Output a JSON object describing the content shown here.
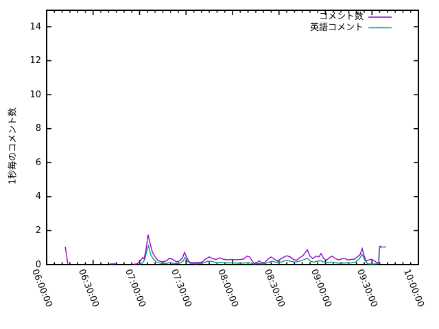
{
  "chart_data": {
    "type": "line",
    "title": "",
    "xlabel": "",
    "ylabel": "1秒毎のコメント数",
    "x_axis": {
      "tick_labels": [
        "06:00:00",
        "06:30:00",
        "07:00:00",
        "07:30:00",
        "08:00:00",
        "08:30:00",
        "09:00:00",
        "09:30:00",
        "10:00:00"
      ],
      "tick_minutes": [
        0,
        30,
        60,
        90,
        120,
        150,
        180,
        210,
        240
      ],
      "range_minutes": [
        0,
        240
      ],
      "minor_divisions": 6,
      "tick_label_rotation_deg": 68
    },
    "y_axis": {
      "tick_labels": [
        "0",
        "2",
        "4",
        "6",
        "8",
        "10",
        "12",
        "14"
      ],
      "tick_values": [
        0,
        2,
        4,
        6,
        8,
        10,
        12,
        14
      ],
      "ylim": [
        0,
        15
      ]
    },
    "grid": "off",
    "legend": {
      "position": "top-right-inside",
      "entries": [
        {
          "name": "コメント数",
          "color": "#9400D3"
        },
        {
          "name": "英語コメント",
          "color": "#009E73"
        }
      ]
    },
    "series": [
      {
        "name": "コメント数",
        "color": "#9400D3",
        "x_unit": "minutes_after_06:00:00",
        "segments": [
          [
            [
              12,
              1.05
            ],
            [
              13.7,
              0.05
            ]
          ],
          [
            [
              41,
              0.04
            ],
            [
              44.5,
              0.04
            ]
          ],
          [
            [
              56.2,
              0.02
            ],
            [
              58.5,
              0.05
            ],
            [
              60.7,
              0.25
            ],
            [
              62,
              0.42
            ],
            [
              62.9,
              0.33
            ],
            [
              64.2,
              0.9
            ],
            [
              65.5,
              1.76
            ],
            [
              66.9,
              1.2
            ],
            [
              68.2,
              0.75
            ],
            [
              70,
              0.45
            ],
            [
              71.7,
              0.25
            ],
            [
              74.4,
              0.16
            ],
            [
              77,
              0.2
            ],
            [
              79.3,
              0.38
            ],
            [
              81.5,
              0.3
            ],
            [
              83.7,
              0.16
            ],
            [
              85.9,
              0.22
            ],
            [
              87.7,
              0.4
            ],
            [
              89,
              0.72
            ],
            [
              90.3,
              0.45
            ],
            [
              92.1,
              0.15
            ],
            [
              94.8,
              0.1
            ],
            [
              97.4,
              0.12
            ],
            [
              100.5,
              0.15
            ],
            [
              102.7,
              0.33
            ],
            [
              104.9,
              0.45
            ],
            [
              107.2,
              0.35
            ],
            [
              109.4,
              0.3
            ],
            [
              111.6,
              0.4
            ],
            [
              113.8,
              0.32
            ],
            [
              116.9,
              0.28
            ],
            [
              119.6,
              0.3
            ],
            [
              122.2,
              0.28
            ],
            [
              124.9,
              0.3
            ],
            [
              127.1,
              0.32
            ],
            [
              129.3,
              0.5
            ],
            [
              131.1,
              0.45
            ],
            [
              132.8,
              0.2
            ],
            [
              134.2,
              0.05
            ],
            [
              135.9,
              0.12
            ],
            [
              137.3,
              0.22
            ],
            [
              138.6,
              0.12
            ],
            [
              140.4,
              0.08
            ],
            [
              142.6,
              0.3
            ],
            [
              144.8,
              0.45
            ],
            [
              147,
              0.32
            ],
            [
              148.8,
              0.2
            ],
            [
              150.6,
              0.3
            ],
            [
              152.8,
              0.42
            ],
            [
              155,
              0.52
            ],
            [
              157.2,
              0.45
            ],
            [
              159.4,
              0.3
            ],
            [
              161.2,
              0.25
            ],
            [
              163.4,
              0.4
            ],
            [
              165.6,
              0.55
            ],
            [
              168.3,
              0.87
            ],
            [
              170,
              0.5
            ],
            [
              171.8,
              0.35
            ],
            [
              174,
              0.5
            ],
            [
              175.8,
              0.45
            ],
            [
              177.1,
              0.65
            ],
            [
              178.9,
              0.35
            ],
            [
              180.7,
              0.25
            ],
            [
              182.4,
              0.4
            ],
            [
              184.2,
              0.5
            ],
            [
              186.4,
              0.35
            ],
            [
              188.6,
              0.28
            ],
            [
              190.9,
              0.35
            ],
            [
              192.6,
              0.35
            ],
            [
              194.4,
              0.28
            ],
            [
              196.6,
              0.3
            ],
            [
              198.8,
              0.32
            ],
            [
              200.6,
              0.45
            ],
            [
              202.4,
              0.6
            ],
            [
              203.7,
              0.95
            ],
            [
              205,
              0.5
            ],
            [
              206.3,
              0.2
            ],
            [
              208.1,
              0.28
            ],
            [
              209.4,
              0.32
            ],
            [
              211.2,
              0.25
            ],
            [
              213,
              0.12
            ],
            [
              214.3,
              0.15
            ],
            [
              214.8,
              1.05
            ],
            [
              216.1,
              1.08
            ]
          ]
        ]
      },
      {
        "name": "英語コメント",
        "color": "#009E73",
        "x_unit": "minutes_after_06:00:00",
        "segments": [
          [
            [
              59.8,
              0.02
            ],
            [
              62,
              0.1
            ],
            [
              63.3,
              0.3
            ],
            [
              64.6,
              0.8
            ],
            [
              65.8,
              1.1
            ],
            [
              67.3,
              0.55
            ],
            [
              69.1,
              0.3
            ],
            [
              70.8,
              0.15
            ],
            [
              73.5,
              0.08
            ],
            [
              77,
              0.06
            ],
            [
              79.7,
              0.12
            ],
            [
              82.4,
              0.06
            ],
            [
              85.9,
              0.08
            ],
            [
              88.1,
              0.2
            ],
            [
              89.4,
              0.42
            ],
            [
              90.8,
              0.2
            ],
            [
              92.5,
              0.08
            ],
            [
              96.1,
              0.05
            ],
            [
              100.5,
              0.08
            ],
            [
              103.6,
              0.18
            ],
            [
              106.3,
              0.2
            ],
            [
              108.9,
              0.12
            ],
            [
              112.5,
              0.12
            ],
            [
              116,
              0.1
            ],
            [
              120.4,
              0.1
            ],
            [
              124.9,
              0.08
            ],
            [
              128.4,
              0.1
            ],
            [
              131.1,
              0.1
            ],
            [
              133.7,
              0.04
            ],
            [
              136.8,
              0.06
            ],
            [
              140.4,
              0.04
            ],
            [
              143.5,
              0.15
            ],
            [
              145.7,
              0.2
            ],
            [
              148.3,
              0.12
            ],
            [
              151.4,
              0.15
            ],
            [
              154.5,
              0.25
            ],
            [
              157.2,
              0.2
            ],
            [
              160.3,
              0.15
            ],
            [
              163.4,
              0.2
            ],
            [
              166.5,
              0.3
            ],
            [
              168.3,
              0.37
            ],
            [
              170.5,
              0.18
            ],
            [
              172.7,
              0.15
            ],
            [
              174.9,
              0.2
            ],
            [
              177.1,
              0.22
            ],
            [
              179.3,
              0.15
            ],
            [
              181.6,
              0.12
            ],
            [
              184.2,
              0.15
            ],
            [
              186.8,
              0.1
            ],
            [
              189.9,
              0.08
            ],
            [
              193.5,
              0.1
            ],
            [
              196.6,
              0.1
            ],
            [
              199.3,
              0.15
            ],
            [
              201.5,
              0.3
            ],
            [
              203.7,
              0.6
            ],
            [
              205.4,
              0.25
            ],
            [
              207.2,
              0.05
            ],
            [
              210.3,
              0.03
            ],
            [
              213.4,
              0.05
            ],
            [
              214.5,
              0.1
            ],
            [
              215,
              1.02
            ],
            [
              219.2,
              1.04
            ]
          ]
        ]
      }
    ]
  }
}
